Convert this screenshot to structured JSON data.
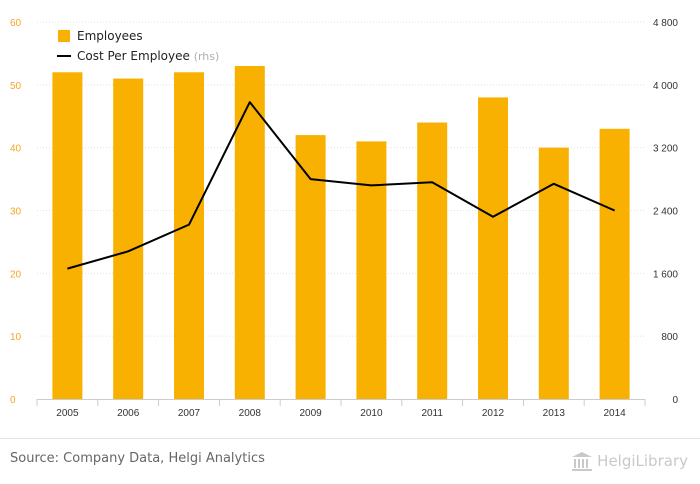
{
  "chart_data": {
    "type": "bar+line",
    "categories": [
      "2005",
      "2006",
      "2007",
      "2008",
      "2009",
      "2010",
      "2011",
      "2012",
      "2013",
      "2014"
    ],
    "series": [
      {
        "name": "Employees",
        "type": "bar",
        "axis": "left",
        "values": [
          52,
          51,
          52,
          53,
          42,
          41,
          44,
          48,
          40,
          43
        ]
      },
      {
        "name": "Cost Per Employee",
        "type": "line",
        "axis": "right",
        "values": [
          1660,
          1880,
          2220,
          3780,
          2800,
          2720,
          2760,
          2320,
          2740,
          2400
        ]
      }
    ],
    "legend": {
      "suffix": "(rhs)",
      "placement": "top-left"
    },
    "y_left": {
      "range": [
        0,
        60
      ],
      "ticks": [
        "0",
        "10",
        "20",
        "30",
        "40",
        "50",
        "60"
      ]
    },
    "y_right": {
      "range": [
        0,
        4800
      ],
      "ticks": [
        "0",
        "800",
        "1 600",
        "2 400",
        "3 200",
        "4 000",
        "4 800"
      ]
    },
    "grid": true,
    "colors": {
      "bar": "#f8b100",
      "line": "#000000",
      "left_ticks": "#f5a623",
      "right_ticks": "#333333"
    }
  },
  "footer": {
    "source": "Source: Company Data, Helgi Analytics",
    "logo_text": "HelgiLibrary",
    "logo_icon": "library-building-icon"
  }
}
